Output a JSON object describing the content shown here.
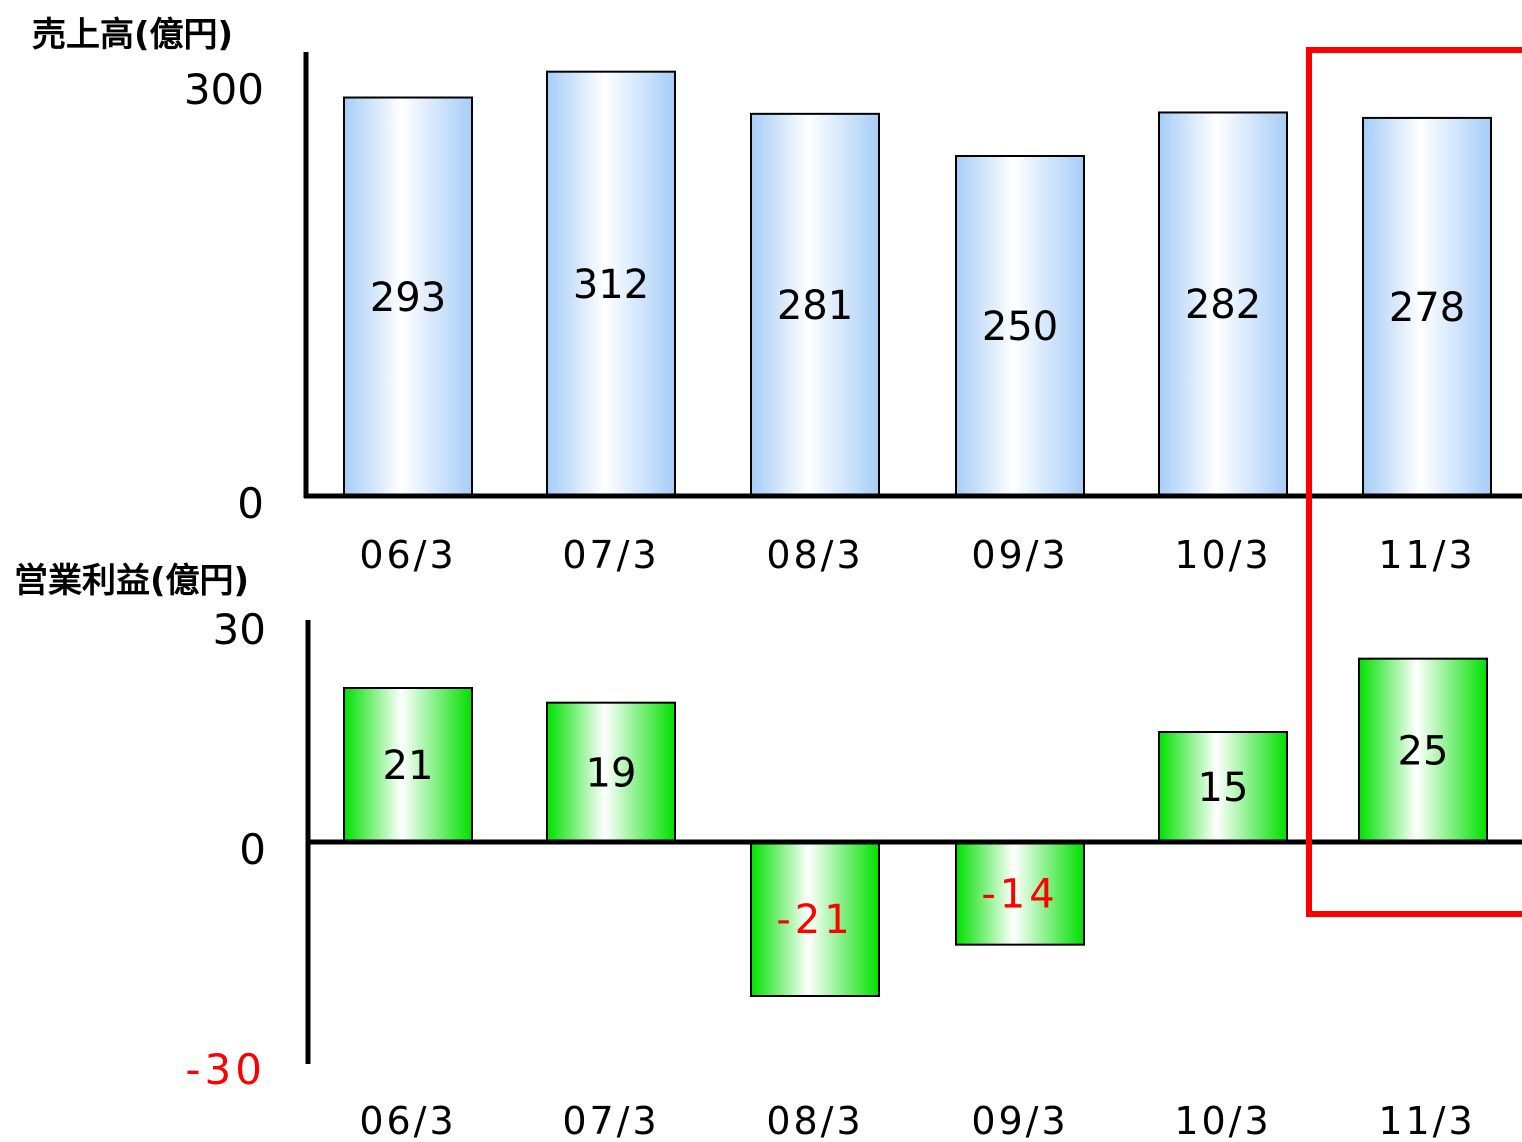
{
  "chart_data": [
    {
      "type": "bar",
      "title": "売上高(億円)",
      "categories": [
        "06/3",
        "07/3",
        "08/3",
        "09/3",
        "10/3",
        "11/3"
      ],
      "values": [
        293,
        312,
        281,
        250,
        282,
        278
      ],
      "ylim": [
        0,
        300
      ],
      "ytick_labels": [
        "300",
        "0"
      ],
      "bar_color": "#a6cdf7",
      "grid": false
    },
    {
      "type": "bar",
      "title": "営業利益(億円)",
      "categories": [
        "06/3",
        "07/3",
        "08/3",
        "09/3",
        "10/3",
        "11/3"
      ],
      "values": [
        21,
        19,
        -21,
        -14,
        15,
        25
      ],
      "value_labels": [
        "21",
        "19",
        "-21",
        "-14",
        "15",
        "25"
      ],
      "ylim": [
        -30,
        30
      ],
      "ytick_labels": [
        "30",
        "0",
        "-30"
      ],
      "bar_color": "#00e000",
      "negative_label_color": "#ff0000",
      "grid": false
    }
  ],
  "highlight": {
    "category": "11/3",
    "color": "#ff0000"
  }
}
